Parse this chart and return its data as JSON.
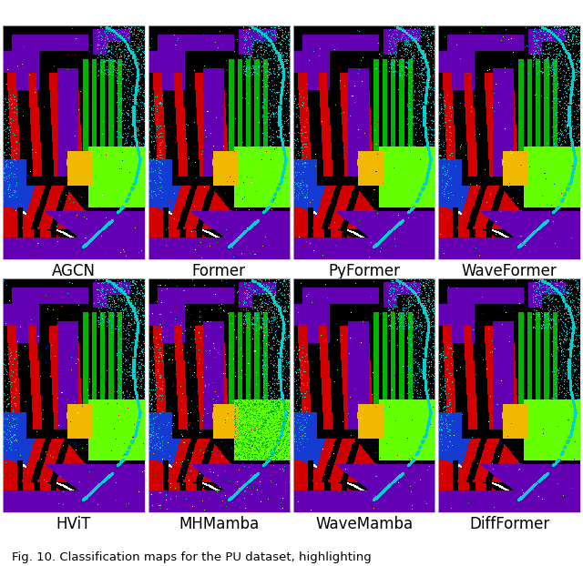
{
  "labels_row1": [
    "AGCN",
    "Former",
    "PyFormer",
    "WaveFormer"
  ],
  "labels_row2": [
    "HViT",
    "MHMamba",
    "WaveMamba",
    "DiffFormer"
  ],
  "caption": "Fig. 10. Classification maps for the PU dataset, highlighting",
  "background_color": "#ffffff",
  "text_color": "#000000",
  "label_fontsize": 12,
  "caption_fontsize": 9.5,
  "fig_width": 6.4,
  "fig_height": 6.22,
  "colors": {
    "BLACK": [
      0,
      0,
      0
    ],
    "RED": [
      210,
      0,
      0
    ],
    "LIME": [
      100,
      255,
      0
    ],
    "PURPLE": [
      100,
      0,
      180
    ],
    "CYAN": [
      0,
      210,
      210
    ],
    "BLUE": [
      20,
      60,
      210
    ],
    "YELLOW": [
      240,
      185,
      0
    ],
    "GREEN": [
      0,
      180,
      0
    ],
    "WHITE": [
      255,
      255,
      255
    ]
  }
}
